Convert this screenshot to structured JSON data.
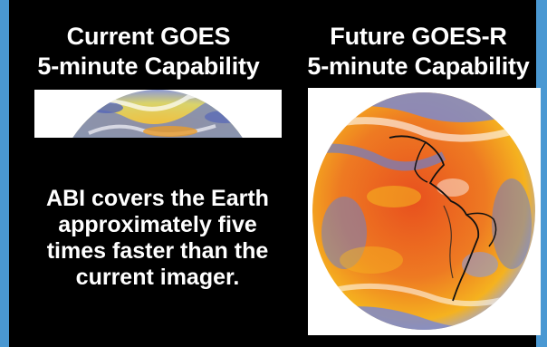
{
  "panels": {
    "current": {
      "title_line1": "Current GOES",
      "title_line2": "5-minute Capability"
    },
    "future": {
      "title_line1": "Future GOES-R",
      "title_line2": "5-minute Capability"
    }
  },
  "caption": {
    "line1": "ABI covers the Earth",
    "line2": "approximately five",
    "line3": "times faster than the",
    "line4": "current imager."
  },
  "colors": {
    "border": "#4a98d2",
    "background": "#000000",
    "text": "#ffffff",
    "earth_warm": "#e8501e",
    "earth_mid": "#f5b21f",
    "cloud_blue": "#6f7fc6"
  }
}
